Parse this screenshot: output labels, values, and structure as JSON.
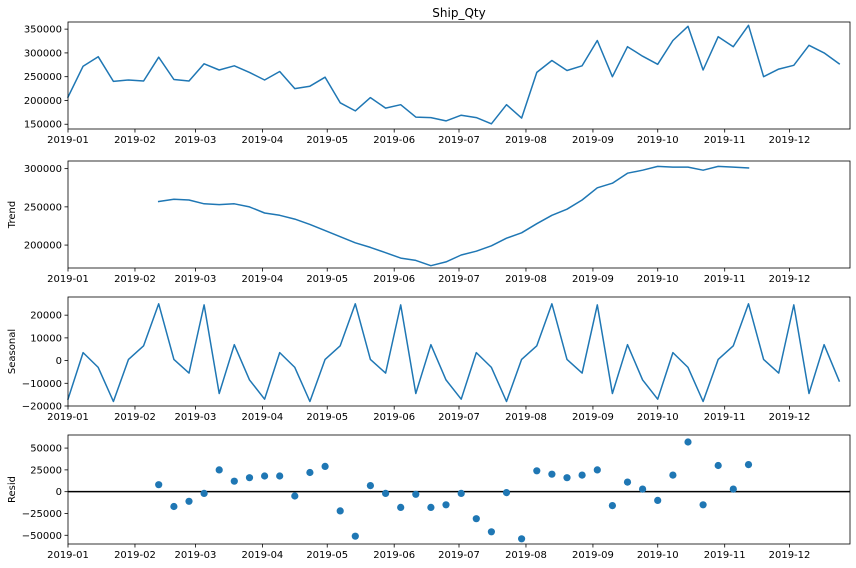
{
  "colors": {
    "series": "#1f77b4",
    "axes": "#000000",
    "background": "#ffffff"
  },
  "x_ticks": [
    "2019-01",
    "2019-02",
    "2019-03",
    "2019-04",
    "2019-05",
    "2019-06",
    "2019-07",
    "2019-08",
    "2019-09",
    "2019-10",
    "2019-11",
    "2019-12"
  ],
  "chart_data": [
    {
      "type": "line",
      "title": "Ship_Qty",
      "xlabel": "",
      "ylabel": "",
      "x_start": "2019-01-01",
      "x_end": "2019-12-29",
      "ylim": [
        140000,
        365000
      ],
      "yticks": [
        150000,
        200000,
        250000,
        300000,
        350000
      ],
      "ytick_labels": [
        "150000",
        "200000",
        "250000",
        "300000",
        "350000"
      ],
      "grid": false,
      "series": [
        {
          "start": "2019-01-01",
          "interval_days": 7,
          "values": [
            207000,
            272000,
            292000,
            240000,
            243000,
            241000,
            291000,
            244000,
            241000,
            277000,
            264000,
            273000,
            259000,
            243000,
            261000,
            225000,
            230000,
            249000,
            195000,
            178000,
            206000,
            184000,
            191000,
            165000,
            164000,
            157000,
            169000,
            164000,
            151000,
            191000,
            163000,
            259000,
            284000,
            263000,
            273000,
            326000,
            250000,
            313000,
            293000,
            276000,
            326000,
            356000,
            264000,
            334000,
            313000,
            358000,
            250000,
            266000,
            274000,
            316000,
            300000,
            277000
          ]
        }
      ]
    },
    {
      "type": "line",
      "title": "",
      "xlabel": "",
      "ylabel": "Trend",
      "x_start": "2019-01-01",
      "x_end": "2019-12-29",
      "ylim": [
        170000,
        310000
      ],
      "yticks": [
        200000,
        250000,
        300000
      ],
      "ytick_labels": [
        "200000",
        "250000",
        "300000"
      ],
      "grid": false,
      "series": [
        {
          "start": "2019-02-12",
          "interval_days": 7,
          "values": [
            257000,
            260000,
            259000,
            254000,
            253000,
            254000,
            250000,
            242000,
            239000,
            234000,
            227000,
            219000,
            211000,
            203000,
            197000,
            190000,
            183000,
            180000,
            173000,
            178000,
            187000,
            192000,
            199000,
            209000,
            216000,
            228000,
            239000,
            247000,
            259000,
            275000,
            281000,
            294000,
            298000,
            303000,
            302000,
            302000,
            298000,
            303000,
            302000,
            301000
          ]
        }
      ]
    },
    {
      "type": "line",
      "title": "",
      "xlabel": "",
      "ylabel": "Seasonal",
      "x_start": "2019-01-01",
      "x_end": "2019-12-29",
      "ylim": [
        -20000,
        28000
      ],
      "yticks": [
        -20000,
        -10000,
        0,
        10000,
        20000
      ],
      "ytick_labels": [
        "−20000",
        "−10000",
        "0",
        "10000",
        "20000"
      ],
      "grid": false,
      "series": [
        {
          "start": "2019-01-01",
          "interval_days": 7,
          "values": [
            -17000,
            3500,
            -3000,
            -18000,
            500,
            6500,
            25000,
            500,
            -5500,
            24500,
            -14500,
            7000,
            -8500,
            -17000,
            3500,
            -3000,
            -18000,
            500,
            6500,
            25000,
            500,
            -5500,
            24500,
            -14500,
            7000,
            -8500,
            -17000,
            3500,
            -3000,
            -18000,
            500,
            6500,
            25000,
            500,
            -5500,
            24500,
            -14500,
            7000,
            -8500,
            -17000,
            3500,
            -3000,
            -18000,
            500,
            6500,
            25000,
            500,
            -5500,
            24500,
            -14500,
            7000,
            -9000
          ]
        }
      ]
    },
    {
      "type": "scatter",
      "title": "",
      "xlabel": "",
      "ylabel": "Resid",
      "x_start": "2019-01-01",
      "x_end": "2019-12-29",
      "ylim": [
        -60000,
        65000
      ],
      "yticks": [
        -50000,
        -25000,
        0,
        25000,
        50000
      ],
      "ytick_labels": [
        "−50000",
        "−25000",
        "0",
        "25000",
        "50000"
      ],
      "grid": false,
      "zero_line": true,
      "series": [
        {
          "start": "2019-02-12",
          "interval_days": 7,
          "values": [
            8000,
            -17000,
            -11000,
            -2000,
            25000,
            12000,
            16000,
            18000,
            18000,
            -5000,
            22000,
            29000,
            -22000,
            -51000,
            7000,
            -2000,
            -18000,
            -3000,
            -18000,
            -15000,
            -2000,
            -31000,
            -46000,
            -1000,
            -54000,
            24000,
            20000,
            16000,
            19000,
            25000,
            -16000,
            11000,
            3000,
            -10000,
            19000,
            57000,
            -15000,
            30000,
            3000,
            31000
          ]
        }
      ]
    }
  ]
}
